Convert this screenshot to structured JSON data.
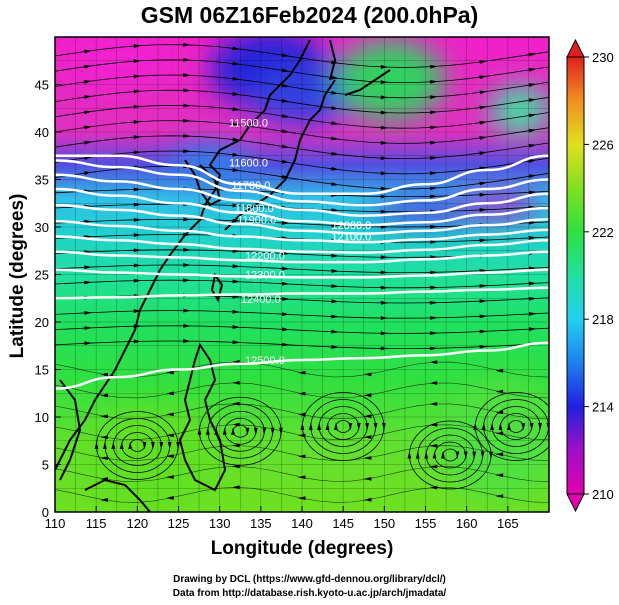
{
  "title": "GSM 06Z16Feb2024 (200.0hPa)",
  "xlabel": "Longitude (degrees)",
  "ylabel": "Latitude  (degrees)",
  "credit_line1": "Drawing by DCL (https://www.gfd-dennou.org/library/dcl/)",
  "credit_line2": "Data from http://database.rish.kyoto-u.ac.jp/arch/jmadata/",
  "chart_data": {
    "type": "heatmap",
    "x_range": [
      110,
      170
    ],
    "y_range": [
      0,
      50
    ],
    "x_ticks": [
      "110",
      "115",
      "120",
      "125",
      "130",
      "135",
      "140",
      "145",
      "150",
      "155",
      "160",
      "165"
    ],
    "y_ticks": [
      "0",
      "5",
      "10",
      "15",
      "20",
      "25",
      "30",
      "35",
      "40",
      "45"
    ],
    "colorbar": {
      "range": [
        210,
        230
      ],
      "ticks": [
        "210",
        "214",
        "218",
        "222",
        "226",
        "230"
      ],
      "colors": [
        "#e000a0",
        "#7020c0",
        "#2030e0",
        "#20b0f0",
        "#20e0b0",
        "#30e040",
        "#90e020",
        "#f0e020",
        "#f08020",
        "#e02020"
      ]
    },
    "contours": [
      {
        "label": "11500.0",
        "lat": [
          37.5,
          37.5,
          36.5,
          34.5,
          33.5,
          33.5,
          34.5,
          36.0,
          37.5
        ],
        "label_lon": 133.5,
        "label_lat": 41.0
      },
      {
        "label": "11600.0",
        "lat": [
          37.0,
          36.3,
          35.5,
          33.8,
          32.7,
          32.3,
          32.8,
          34.0,
          35.0
        ],
        "label_lon": 133.5,
        "label_lat": 36.8
      },
      {
        "label": "11700.0",
        "lat": [
          35.5,
          34.8,
          34.0,
          32.8,
          31.8,
          31.2,
          31.5,
          32.5,
          33.5
        ],
        "label_lon": 133.8,
        "label_lat": 34.4
      },
      {
        "label": "11800.0",
        "lat": [
          34.0,
          33.3,
          32.5,
          31.5,
          30.6,
          30.2,
          30.5,
          31.3,
          32.0
        ],
        "label_lon": 134.2,
        "label_lat": 32.0
      },
      {
        "label": "11900.0",
        "lat": [
          32.3,
          31.8,
          31.2,
          30.3,
          29.6,
          29.3,
          29.6,
          30.2,
          30.8
        ],
        "label_lon": 134.5,
        "label_lat": 30.8
      },
      {
        "label": "12000.0",
        "lat": [
          30.6,
          30.1,
          29.6,
          29.0,
          28.6,
          28.4,
          28.7,
          29.2,
          29.7
        ],
        "label_lon": 146.0,
        "label_lat": 30.2
      },
      {
        "label": "12100.0",
        "lat": [
          29.0,
          28.6,
          28.2,
          27.7,
          27.4,
          27.3,
          27.6,
          28.1,
          28.6
        ],
        "label_lon": 146.0,
        "label_lat": 29.0
      },
      {
        "label": "12200.0",
        "lat": [
          27.4,
          27.0,
          26.8,
          26.5,
          26.3,
          26.3,
          26.6,
          27.0,
          27.4
        ],
        "label_lon": 135.5,
        "label_lat": 27.0
      },
      {
        "label": "12300.0",
        "lat": [
          25.5,
          25.2,
          25.0,
          24.8,
          24.7,
          24.7,
          24.9,
          25.2,
          25.5
        ],
        "label_lon": 135.5,
        "label_lat": 25.0
      },
      {
        "label": "12400.0",
        "lat": [
          22.5,
          22.6,
          22.8,
          22.9,
          23.0,
          23.0,
          23.2,
          23.4,
          23.6
        ],
        "label_lon": 135.0,
        "label_lat": 22.4
      },
      {
        "label": "12500.0",
        "lat": [
          13.0,
          14.2,
          15.0,
          15.6,
          16.0,
          16.2,
          16.5,
          17.0,
          17.8
        ],
        "label_lon": 135.5,
        "label_lat": 16.0
      }
    ],
    "contour_lons": [
      110,
      117.5,
      125,
      132.5,
      140,
      147.5,
      155,
      162.5,
      170
    ]
  }
}
